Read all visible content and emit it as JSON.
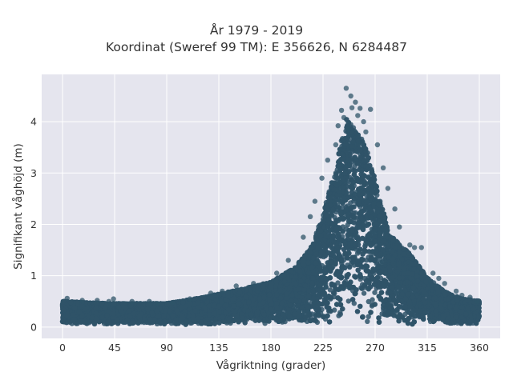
{
  "chart_data": {
    "type": "scatter",
    "title_line1": "År 1979 - 2019",
    "title_line2": "Koordinat (Sweref 99 TM): E 356626, N 6284487",
    "xlabel": "Vågriktning (grader)",
    "ylabel": "Signifikant våghöjd (m)",
    "xlim": [
      -18,
      378
    ],
    "ylim": [
      -0.22,
      4.92
    ],
    "xticks": [
      0,
      45,
      90,
      135,
      180,
      225,
      270,
      315,
      360
    ],
    "xtick_labels": [
      "0",
      "45",
      "90",
      "135",
      "180",
      "225",
      "270",
      "315",
      "360"
    ],
    "yticks": [
      0,
      1,
      2,
      3,
      4
    ],
    "ytick_labels": [
      "0",
      "1",
      "2",
      "3",
      "4"
    ],
    "grid": true,
    "legend": "none",
    "colors": {
      "marker": "#2f5468",
      "plot_bg": "#e5e5ee",
      "grid": "#ffffff"
    },
    "envelope": {
      "direction": [
        0,
        20,
        45,
        90,
        120,
        150,
        180,
        200,
        215,
        225,
        235,
        245,
        255,
        265,
        275,
        285,
        300,
        315,
        330,
        345,
        360
      ],
      "max_height": [
        0.55,
        0.52,
        0.5,
        0.5,
        0.62,
        0.78,
        0.95,
        1.25,
        1.7,
        2.4,
        3.3,
        4.4,
        4.2,
        3.6,
        2.6,
        1.9,
        1.55,
        1.05,
        0.75,
        0.6,
        0.55
      ],
      "min_height": [
        0.05,
        0.05,
        0.05,
        0.05,
        0.05,
        0.05,
        0.05,
        0.05,
        0.05,
        0.05,
        0.05,
        0.05,
        0.05,
        0.05,
        0.05,
        0.05,
        0.05,
        0.05,
        0.05,
        0.05,
        0.05
      ]
    },
    "points": [
      {
        "x": 245,
        "y": 4.65
      },
      {
        "x": 249,
        "y": 4.5
      },
      {
        "x": 253,
        "y": 4.38
      },
      {
        "x": 250,
        "y": 4.27
      },
      {
        "x": 266,
        "y": 4.24
      },
      {
        "x": 241,
        "y": 4.22
      },
      {
        "x": 257,
        "y": 4.26
      },
      {
        "x": 255,
        "y": 4.12
      },
      {
        "x": 243,
        "y": 4.08
      },
      {
        "x": 260,
        "y": 4.0
      },
      {
        "x": 238,
        "y": 3.92
      },
      {
        "x": 247,
        "y": 3.85
      },
      {
        "x": 262,
        "y": 3.8
      },
      {
        "x": 236,
        "y": 3.55
      },
      {
        "x": 272,
        "y": 3.55
      },
      {
        "x": 229,
        "y": 3.25
      },
      {
        "x": 277,
        "y": 3.1
      },
      {
        "x": 224,
        "y": 2.9
      },
      {
        "x": 281,
        "y": 2.7
      },
      {
        "x": 218,
        "y": 2.45
      },
      {
        "x": 287,
        "y": 2.3
      },
      {
        "x": 214,
        "y": 2.15
      },
      {
        "x": 291,
        "y": 1.95
      },
      {
        "x": 208,
        "y": 1.75
      },
      {
        "x": 300,
        "y": 1.6
      },
      {
        "x": 304,
        "y": 1.55
      },
      {
        "x": 310,
        "y": 1.55
      },
      {
        "x": 320,
        "y": 1.05
      },
      {
        "x": 325,
        "y": 0.95
      },
      {
        "x": 330,
        "y": 0.85
      },
      {
        "x": 195,
        "y": 1.3
      },
      {
        "x": 185,
        "y": 1.05
      },
      {
        "x": 165,
        "y": 0.85
      },
      {
        "x": 150,
        "y": 0.8
      },
      {
        "x": 128,
        "y": 0.66
      },
      {
        "x": 138,
        "y": 0.7
      },
      {
        "x": 4,
        "y": 0.56
      },
      {
        "x": 17,
        "y": 0.52
      },
      {
        "x": 30,
        "y": 0.52
      },
      {
        "x": 40,
        "y": 0.5
      },
      {
        "x": 44,
        "y": 0.55
      },
      {
        "x": 60,
        "y": 0.5
      },
      {
        "x": 75,
        "y": 0.5
      },
      {
        "x": 82,
        "y": 0.46
      },
      {
        "x": 95,
        "y": 0.48
      },
      {
        "x": 110,
        "y": 0.55
      },
      {
        "x": 345,
        "y": 0.62
      },
      {
        "x": 352,
        "y": 0.58
      },
      {
        "x": 358,
        "y": 0.5
      },
      {
        "x": 340,
        "y": 0.7
      }
    ]
  }
}
